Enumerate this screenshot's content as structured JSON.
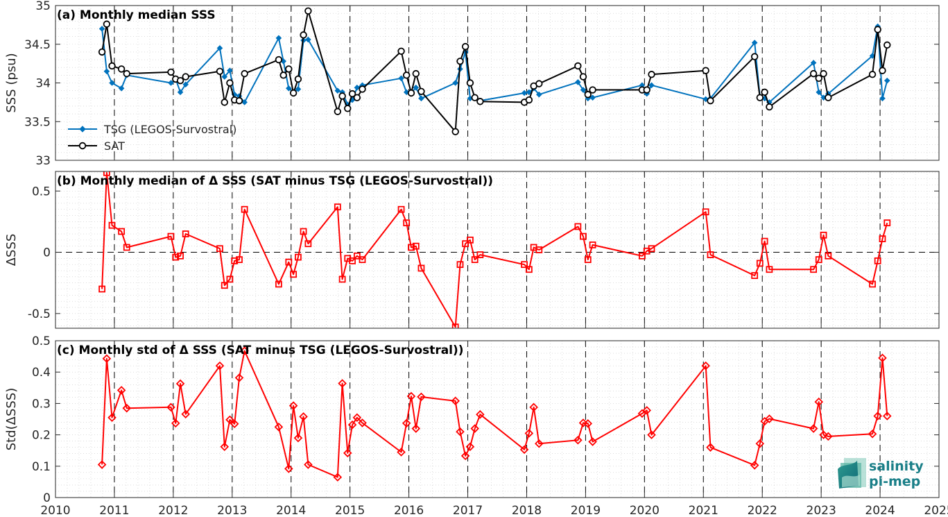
{
  "chart_data": [
    {
      "type": "line",
      "title": "(a) Monthly median SSS",
      "ylabel": "SSS (psu)",
      "ylim": [
        33,
        35
      ],
      "xlim": [
        2010,
        2025
      ],
      "yticks": [
        33,
        33.5,
        34,
        34.5,
        35
      ],
      "ytick_labels": [
        "33",
        "33.5",
        "34",
        "34.5",
        "35"
      ],
      "legend": "bottom-left",
      "grid": true,
      "series": [
        {
          "name": "TSG (LEGOS-Survostral)",
          "color": "#0072BD",
          "marker": "diamond",
          "x": [
            2010.79,
            2010.87,
            2010.96,
            2011.12,
            2011.21,
            2011.96,
            2012.04,
            2012.12,
            2012.21,
            2012.79,
            2012.87,
            2012.96,
            2013.04,
            2013.12,
            2013.21,
            2013.79,
            2013.87,
            2013.96,
            2014.04,
            2014.12,
            2014.21,
            2014.29,
            2014.79,
            2014.87,
            2014.96,
            2015.04,
            2015.12,
            2015.21,
            2015.87,
            2015.96,
            2016.04,
            2016.12,
            2016.21,
            2016.79,
            2016.87,
            2016.96,
            2017.04,
            2017.12,
            2017.21,
            2017.96,
            2018.04,
            2018.12,
            2018.21,
            2018.87,
            2018.96,
            2019.04,
            2019.12,
            2019.96,
            2020.04,
            2020.12,
            2021.04,
            2021.12,
            2021.87,
            2021.96,
            2022.04,
            2022.12,
            2022.87,
            2022.96,
            2023.04,
            2023.12,
            2023.87,
            2023.96,
            2024.04,
            2024.12
          ],
          "values": [
            34.7,
            34.15,
            34.0,
            33.93,
            34.1,
            34.0,
            34.05,
            33.88,
            33.98,
            34.45,
            34.08,
            34.16,
            33.85,
            33.83,
            33.75,
            34.58,
            34.28,
            33.93,
            33.88,
            33.92,
            34.55,
            34.56,
            33.9,
            33.88,
            33.72,
            33.78,
            33.94,
            33.97,
            34.06,
            33.88,
            33.87,
            33.94,
            33.8,
            34.0,
            34.18,
            34.4,
            33.8,
            33.82,
            33.77,
            33.87,
            33.88,
            33.93,
            33.85,
            34.01,
            33.91,
            33.8,
            33.81,
            33.97,
            33.86,
            33.97,
            33.79,
            33.8,
            34.52,
            33.82,
            33.8,
            33.75,
            34.26,
            33.88,
            33.81,
            33.86,
            34.35,
            34.73,
            33.8,
            34.03
          ]
        },
        {
          "name": "SAT",
          "color": "#000000",
          "marker": "circle",
          "x": [
            2010.79,
            2010.87,
            2010.96,
            2011.12,
            2011.21,
            2011.96,
            2012.04,
            2012.12,
            2012.21,
            2012.79,
            2012.87,
            2012.96,
            2013.04,
            2013.12,
            2013.21,
            2013.79,
            2013.87,
            2013.96,
            2014.04,
            2014.12,
            2014.21,
            2014.29,
            2014.79,
            2014.87,
            2014.96,
            2015.04,
            2015.12,
            2015.21,
            2015.87,
            2015.96,
            2016.04,
            2016.12,
            2016.21,
            2016.79,
            2016.87,
            2016.96,
            2017.04,
            2017.12,
            2017.21,
            2017.96,
            2018.04,
            2018.12,
            2018.21,
            2018.87,
            2018.96,
            2019.04,
            2019.12,
            2019.96,
            2020.04,
            2020.12,
            2021.04,
            2021.12,
            2021.87,
            2021.96,
            2022.04,
            2022.12,
            2022.87,
            2022.96,
            2023.04,
            2023.12,
            2023.87,
            2023.96,
            2024.04,
            2024.12
          ],
          "values": [
            34.4,
            34.76,
            34.22,
            34.18,
            34.12,
            34.14,
            34.05,
            34.03,
            34.08,
            34.15,
            33.75,
            34.0,
            33.78,
            33.77,
            34.12,
            34.3,
            34.1,
            34.18,
            33.87,
            34.05,
            34.62,
            34.93,
            33.63,
            33.83,
            33.67,
            33.86,
            33.81,
            33.92,
            34.41,
            34.1,
            33.87,
            34.12,
            33.89,
            33.37,
            34.28,
            34.47,
            34.0,
            33.81,
            33.76,
            33.75,
            33.78,
            33.96,
            33.99,
            34.22,
            34.08,
            33.85,
            33.91,
            33.91,
            33.91,
            34.11,
            34.16,
            33.77,
            34.34,
            33.81,
            33.88,
            33.69,
            34.12,
            34.06,
            34.12,
            33.81,
            34.11,
            34.69,
            34.16,
            34.49
          ]
        }
      ]
    },
    {
      "type": "line",
      "title": "(b) Monthly median of Δ SSS (SAT minus TSG (LEGOS-Survostral))",
      "ylabel": "ΔSSS",
      "ylim": [
        -0.62,
        0.66
      ],
      "xlim": [
        2010,
        2025
      ],
      "yticks": [
        -0.5,
        0,
        0.5
      ],
      "ytick_labels": [
        "-0.5",
        "0",
        "0.5"
      ],
      "zero_line": true,
      "grid": true,
      "series": [
        {
          "name": "",
          "color": "#FF0000",
          "marker": "square",
          "x": [
            2010.79,
            2010.87,
            2010.96,
            2011.12,
            2011.21,
            2011.96,
            2012.04,
            2012.12,
            2012.21,
            2012.79,
            2012.87,
            2012.96,
            2013.04,
            2013.12,
            2013.21,
            2013.79,
            2013.96,
            2014.04,
            2014.12,
            2014.21,
            2014.29,
            2014.79,
            2014.87,
            2014.96,
            2015.04,
            2015.12,
            2015.21,
            2015.87,
            2015.96,
            2016.04,
            2016.12,
            2016.21,
            2016.79,
            2016.87,
            2016.96,
            2017.04,
            2017.12,
            2017.21,
            2017.96,
            2018.04,
            2018.12,
            2018.21,
            2018.87,
            2018.96,
            2019.04,
            2019.12,
            2019.96,
            2020.04,
            2020.12,
            2021.04,
            2021.12,
            2021.87,
            2021.96,
            2022.04,
            2022.12,
            2022.87,
            2022.96,
            2023.04,
            2023.12,
            2023.87,
            2023.96,
            2024.04,
            2024.12
          ],
          "values": [
            -0.3,
            0.65,
            0.22,
            0.17,
            0.04,
            0.13,
            -0.04,
            -0.03,
            0.15,
            0.03,
            -0.27,
            -0.22,
            -0.07,
            -0.06,
            0.35,
            -0.26,
            -0.08,
            -0.18,
            -0.04,
            0.17,
            0.07,
            0.37,
            -0.22,
            -0.05,
            -0.07,
            -0.03,
            -0.06,
            0.35,
            0.24,
            0.04,
            0.05,
            -0.13,
            -0.61,
            -0.1,
            0.07,
            0.1,
            -0.06,
            -0.02,
            -0.1,
            -0.14,
            0.04,
            0.02,
            0.21,
            0.13,
            -0.06,
            0.06,
            -0.03,
            0.01,
            0.03,
            0.33,
            -0.02,
            -0.19,
            -0.09,
            0.09,
            -0.14,
            -0.14,
            -0.06,
            0.14,
            -0.03,
            -0.26,
            -0.07,
            0.11,
            0.24
          ]
        }
      ]
    },
    {
      "type": "line",
      "title": "(c) Monthly std of Δ SSS (SAT minus TSG (LEGOS-Survostral))",
      "ylabel": "Std(ΔSSS)",
      "ylim": [
        0,
        0.5
      ],
      "xlim": [
        2010,
        2025
      ],
      "yticks": [
        0,
        0.1,
        0.2,
        0.3,
        0.4,
        0.5
      ],
      "ytick_labels": [
        "0",
        "0.1",
        "0.2",
        "0.3",
        "0.4",
        "0.5"
      ],
      "xticks": [
        2010,
        2011,
        2012,
        2013,
        2014,
        2015,
        2016,
        2017,
        2018,
        2019,
        2020,
        2021,
        2022,
        2023,
        2024,
        2025
      ],
      "xtick_labels": [
        "2010",
        "2011",
        "2012",
        "2013",
        "2014",
        "2015",
        "2016",
        "2017",
        "2018",
        "2019",
        "2020",
        "2021",
        "2022",
        "2023",
        "2024",
        "2025"
      ],
      "grid": true,
      "series": [
        {
          "name": "",
          "color": "#FF0000",
          "marker": "diamond",
          "x": [
            2010.79,
            2010.87,
            2010.96,
            2011.12,
            2011.21,
            2011.96,
            2012.04,
            2012.12,
            2012.21,
            2012.79,
            2012.87,
            2012.96,
            2013.04,
            2013.12,
            2013.21,
            2013.79,
            2013.96,
            2014.04,
            2014.12,
            2014.21,
            2014.29,
            2014.79,
            2014.87,
            2014.96,
            2015.04,
            2015.12,
            2015.21,
            2015.87,
            2015.96,
            2016.04,
            2016.12,
            2016.21,
            2016.79,
            2016.87,
            2016.96,
            2017.04,
            2017.12,
            2017.21,
            2017.96,
            2018.04,
            2018.12,
            2018.21,
            2018.87,
            2018.96,
            2019.04,
            2019.12,
            2019.96,
            2020.04,
            2020.12,
            2021.04,
            2021.12,
            2021.87,
            2021.96,
            2022.04,
            2022.12,
            2022.87,
            2022.96,
            2023.04,
            2023.12,
            2023.87,
            2023.96,
            2024.04,
            2024.12
          ],
          "values": [
            0.105,
            0.443,
            0.255,
            0.342,
            0.285,
            0.288,
            0.237,
            0.363,
            0.266,
            0.42,
            0.162,
            0.248,
            0.235,
            0.382,
            0.468,
            0.225,
            0.092,
            0.293,
            0.19,
            0.258,
            0.105,
            0.065,
            0.364,
            0.142,
            0.232,
            0.255,
            0.238,
            0.145,
            0.237,
            0.323,
            0.22,
            0.321,
            0.308,
            0.21,
            0.133,
            0.162,
            0.22,
            0.265,
            0.153,
            0.205,
            0.288,
            0.172,
            0.183,
            0.238,
            0.236,
            0.178,
            0.268,
            0.278,
            0.2,
            0.42,
            0.16,
            0.103,
            0.172,
            0.243,
            0.251,
            0.22,
            0.305,
            0.2,
            0.195,
            0.203,
            0.26,
            0.445,
            0.26
          ]
        }
      ]
    }
  ],
  "logo": {
    "line1": "salinity",
    "line2": "pi-mep",
    "color": "#1a7f88"
  },
  "year_lines": [
    2011,
    2012,
    2013,
    2014,
    2015,
    2016,
    2017,
    2018,
    2019,
    2020,
    2021,
    2022,
    2023,
    2024
  ]
}
